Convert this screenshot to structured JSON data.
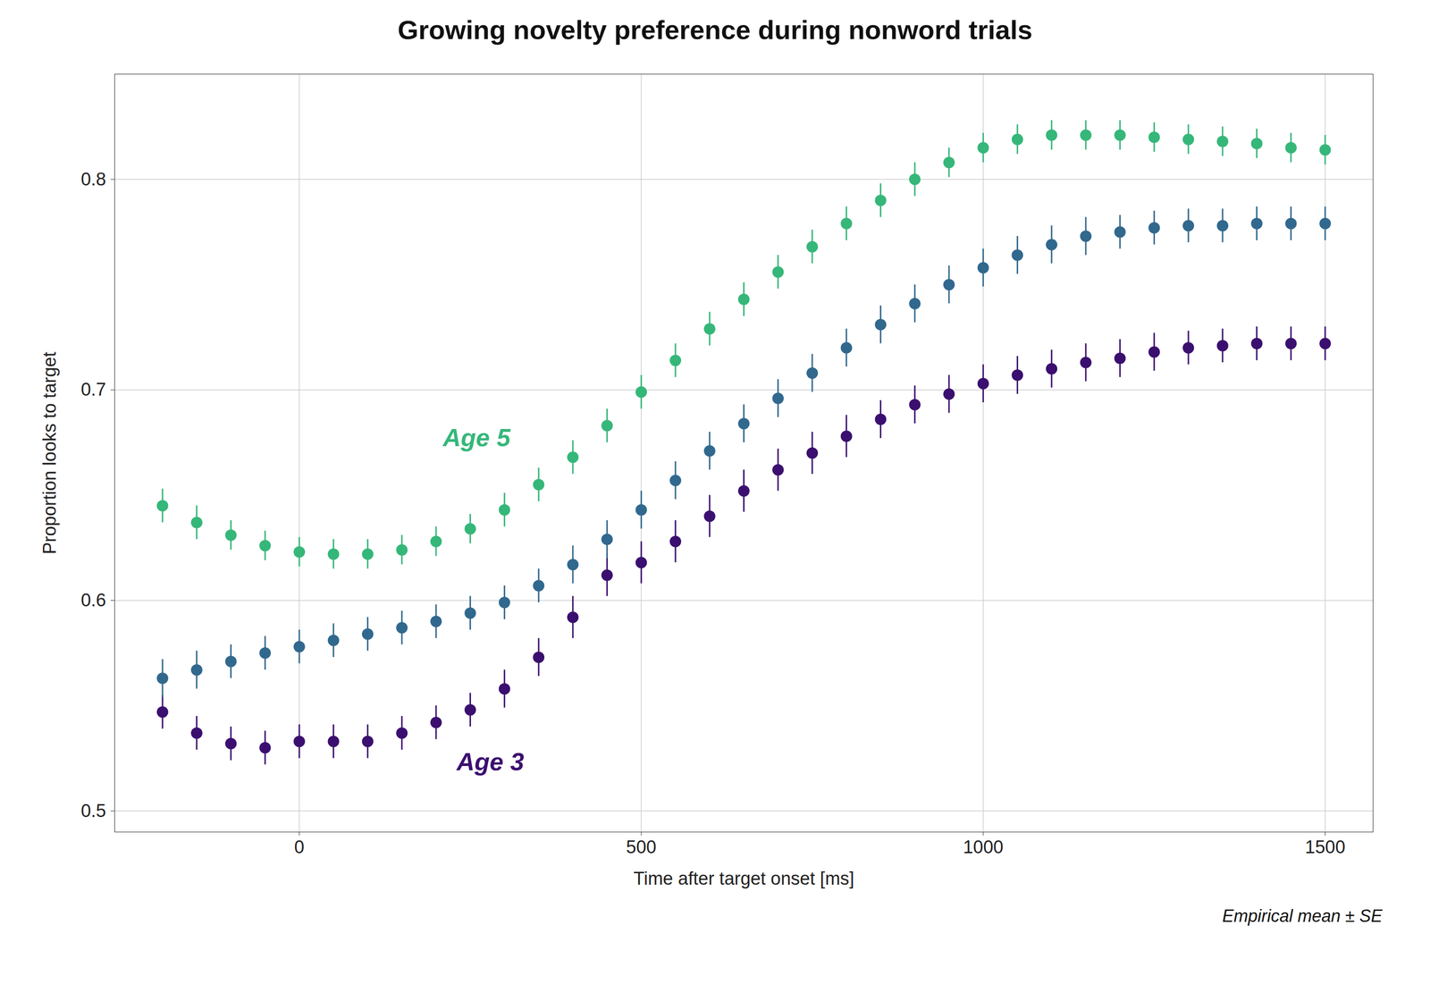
{
  "chart_data": {
    "type": "scatter",
    "title": "Growing novelty preference during nonword trials",
    "xlabel": "Time after target onset [ms]",
    "ylabel": "Proportion looks to target",
    "x": [
      -200,
      -150,
      -100,
      -50,
      0,
      50,
      100,
      150,
      200,
      250,
      300,
      350,
      400,
      450,
      500,
      550,
      600,
      650,
      700,
      750,
      800,
      850,
      900,
      950,
      1000,
      1050,
      1100,
      1150,
      1200,
      1250,
      1300,
      1350,
      1400,
      1450,
      1500
    ],
    "series": [
      {
        "color": "#3b0f6f",
        "values": [
          0.547,
          0.537,
          0.532,
          0.53,
          0.533,
          0.533,
          0.533,
          0.537,
          0.542,
          0.548,
          0.558,
          0.573,
          0.592,
          0.612,
          0.618,
          0.628,
          0.64,
          0.652,
          0.662,
          0.67,
          0.678,
          0.686,
          0.693,
          0.698,
          0.703,
          0.707,
          0.71,
          0.713,
          0.715,
          0.718,
          0.72,
          0.721,
          0.722,
          0.722,
          0.722
        ],
        "error": [
          0.008,
          0.008,
          0.008,
          0.008,
          0.008,
          0.008,
          0.008,
          0.008,
          0.008,
          0.008,
          0.009,
          0.009,
          0.01,
          0.01,
          0.01,
          0.01,
          0.01,
          0.01,
          0.01,
          0.01,
          0.01,
          0.009,
          0.009,
          0.009,
          0.009,
          0.009,
          0.009,
          0.009,
          0.009,
          0.009,
          0.008,
          0.008,
          0.008,
          0.008,
          0.008
        ]
      },
      {
        "color": "#31688e",
        "values": [
          0.563,
          0.567,
          0.571,
          0.575,
          0.578,
          0.581,
          0.584,
          0.587,
          0.59,
          0.594,
          0.599,
          0.607,
          0.617,
          0.629,
          0.643,
          0.657,
          0.671,
          0.684,
          0.696,
          0.708,
          0.72,
          0.731,
          0.741,
          0.75,
          0.758,
          0.764,
          0.769,
          0.773,
          0.775,
          0.777,
          0.778,
          0.778,
          0.779,
          0.779,
          0.779
        ],
        "error": [
          0.009,
          0.009,
          0.008,
          0.008,
          0.008,
          0.008,
          0.008,
          0.008,
          0.008,
          0.008,
          0.008,
          0.008,
          0.009,
          0.009,
          0.009,
          0.009,
          0.009,
          0.009,
          0.009,
          0.009,
          0.009,
          0.009,
          0.009,
          0.009,
          0.009,
          0.009,
          0.009,
          0.009,
          0.008,
          0.008,
          0.008,
          0.008,
          0.008,
          0.008,
          0.008
        ]
      },
      {
        "color": "#35b779",
        "values": [
          0.645,
          0.637,
          0.631,
          0.626,
          0.623,
          0.622,
          0.622,
          0.624,
          0.628,
          0.634,
          0.643,
          0.655,
          0.668,
          0.683,
          0.699,
          0.714,
          0.729,
          0.743,
          0.756,
          0.768,
          0.779,
          0.79,
          0.8,
          0.808,
          0.815,
          0.819,
          0.821,
          0.821,
          0.821,
          0.82,
          0.819,
          0.818,
          0.817,
          0.815,
          0.814
        ],
        "error": [
          0.008,
          0.008,
          0.007,
          0.007,
          0.007,
          0.007,
          0.007,
          0.007,
          0.007,
          0.007,
          0.008,
          0.008,
          0.008,
          0.008,
          0.008,
          0.008,
          0.008,
          0.008,
          0.008,
          0.008,
          0.008,
          0.008,
          0.008,
          0.007,
          0.007,
          0.007,
          0.007,
          0.007,
          0.007,
          0.007,
          0.007,
          0.007,
          0.007,
          0.007,
          0.007
        ]
      }
    ],
    "annotations": [
      {
        "text": "Age 5",
        "x": 210,
        "y": 0.677,
        "color": "#35b779"
      },
      {
        "text": "Age 3",
        "x": 230,
        "y": 0.523,
        "color": "#3b0f6f"
      },
      {
        "text": "Empirical mean ± SE"
      }
    ],
    "xlim": [
      -270,
      1570
    ],
    "ylim": [
      0.49,
      0.85
    ],
    "xticks": [
      0,
      500,
      1000,
      1500
    ],
    "yticks": [
      0.5,
      0.6,
      0.7,
      0.8
    ],
    "grid": true
  }
}
